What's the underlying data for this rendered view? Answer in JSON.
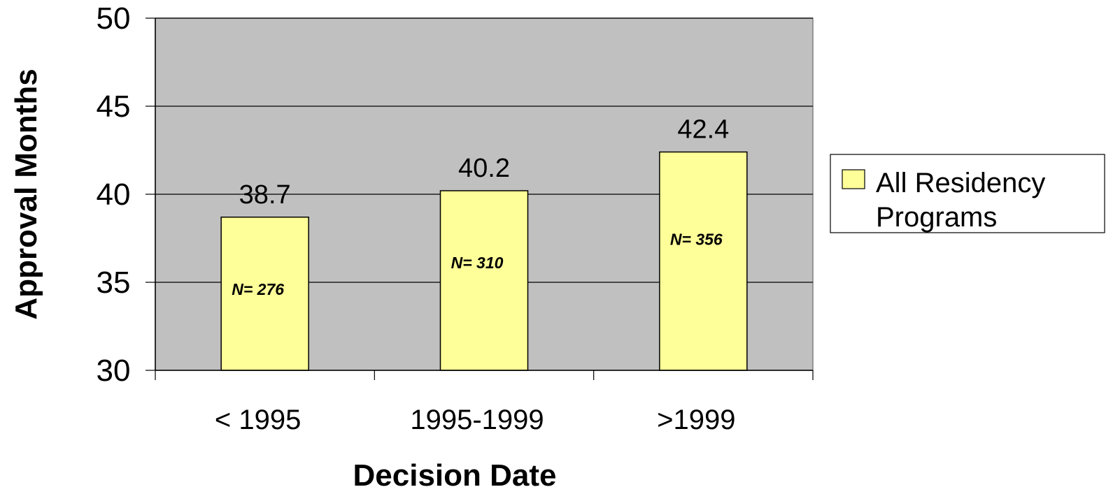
{
  "chart_data": {
    "type": "bar",
    "categories": [
      "< 1995",
      "1995-1999",
      ">1999"
    ],
    "series": [
      {
        "name": "All Residency Programs",
        "values": [
          38.7,
          40.2,
          42.4
        ],
        "labels": [
          "38.7",
          "40.2",
          "42.4"
        ],
        "annotations": [
          "N= 276",
          "N= 310",
          "N= 356"
        ]
      }
    ],
    "xlabel": "Decision Date",
    "ylabel": "Approval Months",
    "ylim": [
      30,
      50
    ],
    "yticks": [
      30,
      35,
      40,
      45,
      50
    ],
    "ytick_labels": [
      "30",
      "35",
      "40",
      "45",
      "50"
    ],
    "grid": true,
    "legend": {
      "position": "right",
      "lines": [
        "All Residency",
        "Programs"
      ]
    },
    "colors": {
      "plot_background": "#c0c0c0",
      "bar_fill": "#ffff99",
      "bar_stroke": "#000000",
      "gridline": "#000000"
    }
  }
}
